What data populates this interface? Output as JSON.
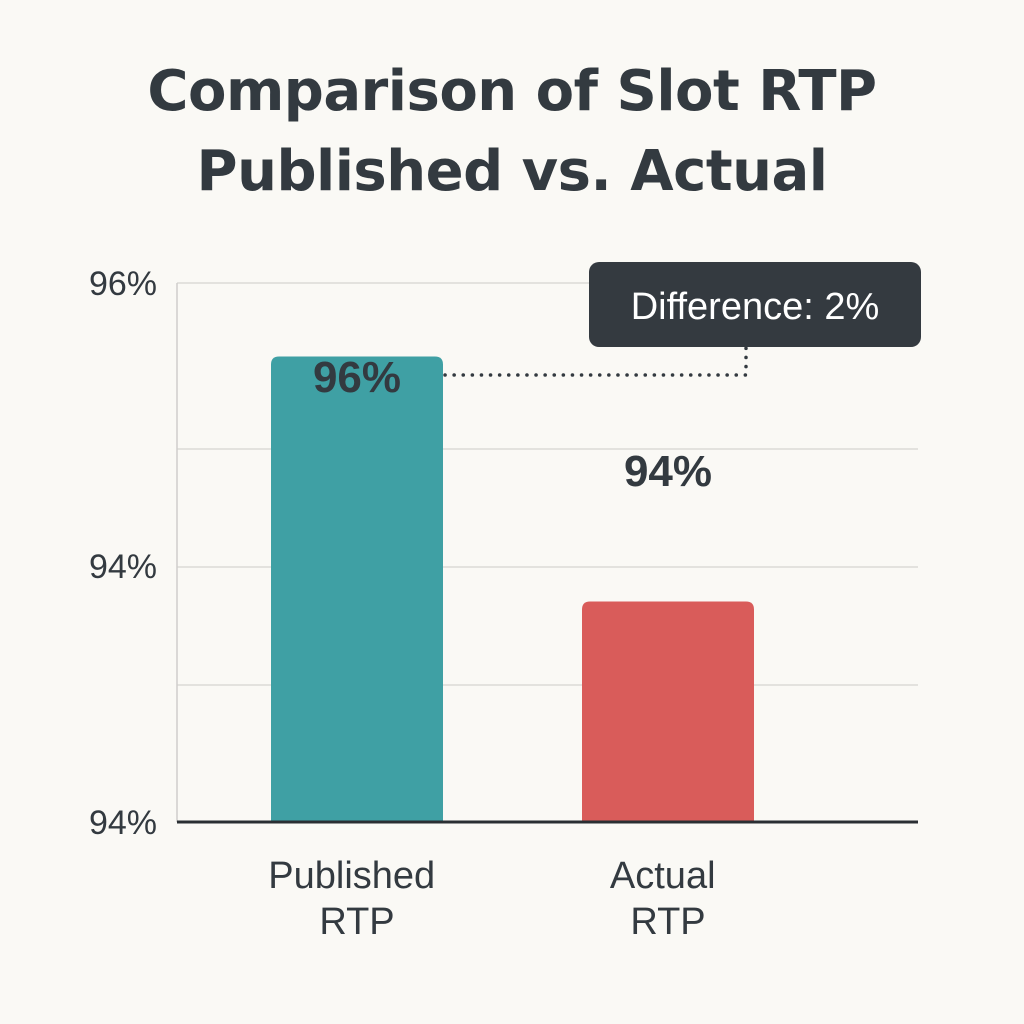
{
  "chart_data": {
    "type": "bar",
    "title_lines": [
      "Comparison of Slot RTP",
      "Published vs. Actual"
    ],
    "categories": [
      [
        "Published",
        "RTP"
      ],
      [
        "Actual",
        "RTP"
      ]
    ],
    "values": [
      96,
      94
    ],
    "value_labels": [
      "96%",
      "94%"
    ],
    "y_tick_labels": [
      "96%",
      "94%",
      "94%"
    ],
    "ylim": [
      92.2,
      96.6
    ],
    "grid": true,
    "annotation": "Difference: 2%",
    "colors": [
      "#3fa0a4",
      "#d95c5a"
    ],
    "text_color": "#333a40",
    "annotation_bg": "#343a40",
    "annotation_text_color": "#ffffff",
    "gridline_color": "#e3e2de",
    "axis_color": "#2a2f33"
  }
}
